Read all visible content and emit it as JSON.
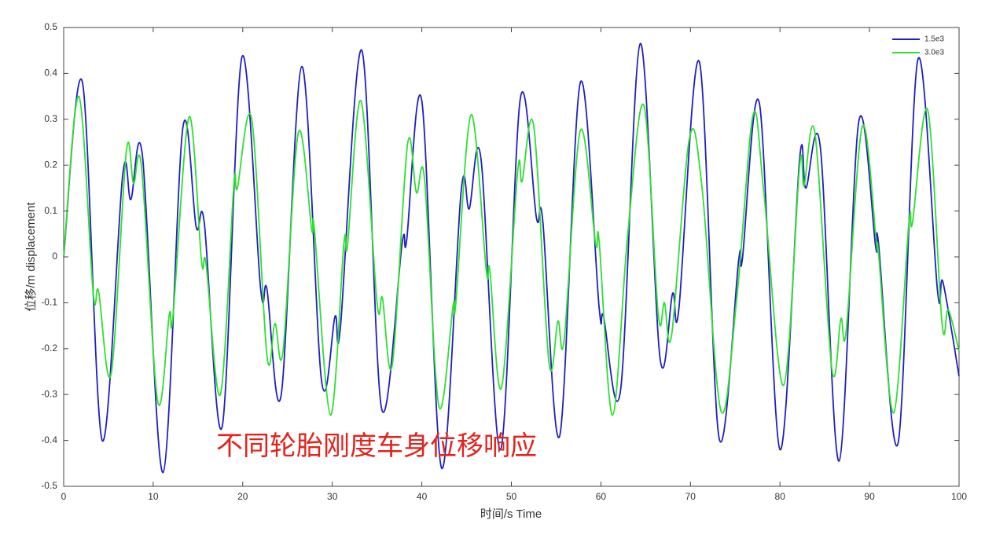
{
  "chart_data": {
    "type": "line",
    "x_label": "时间/s Time",
    "y_label": "位移/m displacement",
    "annotation": "不同轮胎刚度车身位移响应",
    "xlim": [
      0,
      100
    ],
    "xticks": [
      0,
      10,
      20,
      30,
      40,
      50,
      60,
      70,
      80,
      90,
      100
    ],
    "ylim": [
      -0.5,
      0.5
    ],
    "yticks": [
      -0.5,
      -0.4,
      -0.3,
      -0.2,
      -0.1,
      0,
      0.1,
      0.2,
      0.3,
      0.4,
      0.5
    ],
    "legend": "upper right",
    "series": [
      {
        "name": "1.5e3",
        "color": "#1f1fc4",
        "x": [
          0,
          2.1,
          4.3,
          6.6,
          7.5,
          8.8,
          11.1,
          13.3,
          14.8,
          15.7,
          17.7,
          19.9,
          22.0,
          22.7,
          24.3,
          26.6,
          28.8,
          30.3,
          30.9,
          33.3,
          35.5,
          37.8,
          38.3,
          40.0,
          42.2,
          44.4,
          45.3,
          46.6,
          48.8,
          51.0,
          52.8,
          53.5,
          55.4,
          57.7,
          59.8,
          60.3,
          62.2,
          64.4,
          66.6,
          68.0,
          68.7,
          71.0,
          73.2,
          75.4,
          75.8,
          77.7,
          80.0,
          82.2,
          82.9,
          84.5,
          86.6,
          88.8,
          90.7,
          91.0,
          93.2,
          95.4,
          97.6,
          98.2,
          100
        ],
        "values": [
          0,
          0.38,
          -0.4,
          0.18,
          0.125,
          0.22,
          -0.47,
          0.28,
          0.065,
          0.075,
          -0.37,
          0.435,
          -0.07,
          -0.07,
          -0.3,
          0.415,
          -0.27,
          -0.13,
          -0.155,
          0.45,
          -0.33,
          0.03,
          0.035,
          0.34,
          -0.46,
          0.145,
          0.105,
          0.215,
          -0.42,
          0.345,
          0.085,
          0.08,
          -0.39,
          0.38,
          -0.11,
          -0.13,
          -0.29,
          0.465,
          -0.22,
          -0.08,
          -0.115,
          0.425,
          -0.395,
          -0.005,
          -0.005,
          0.335,
          -0.42,
          0.215,
          0.15,
          0.24,
          -0.445,
          0.295,
          0.02,
          0.03,
          -0.405,
          0.43,
          -0.075,
          -0.055,
          -0.26
        ]
      },
      {
        "name": "3.0e3",
        "color": "#2ee02e",
        "x": [
          0,
          1.7,
          3.3,
          3.9,
          5.3,
          7.0,
          7.8,
          8.7,
          10.5,
          11.8,
          12.2,
          14.0,
          15.4,
          15.9,
          17.5,
          19.0,
          19.4,
          21.0,
          22.7,
          23.6,
          24.5,
          26.2,
          27.7,
          28.0,
          29.8,
          31.3,
          31.7,
          33.2,
          35.0,
          35.6,
          36.7,
          38.4,
          39.4,
          40.3,
          41.9,
          43.5,
          43.8,
          45.5,
          47.2,
          47.6,
          48.9,
          50.7,
          51.2,
          52.5,
          54.2,
          55.2,
          55.9,
          57.7,
          59.4,
          59.8,
          61.3,
          63.0,
          64.8,
          66.4,
          67.1,
          67.9,
          69.9,
          71.3,
          73.4,
          75.2,
          77.0,
          78.2,
          80.4,
          82.2,
          82.7,
          83.9,
          85.8,
          86.8,
          87.4,
          89.2,
          90.8,
          91.0,
          92.7,
          94.4,
          94.8,
          96.5,
          98.1,
          98.8,
          100
        ],
        "values": [
          0,
          0.35,
          -0.08,
          -0.075,
          -0.255,
          0.23,
          0.16,
          0.195,
          -0.315,
          -0.125,
          -0.13,
          0.305,
          -0.01,
          -0.015,
          -0.3,
          0.155,
          0.15,
          0.3,
          -0.215,
          -0.145,
          -0.205,
          0.27,
          0.06,
          0.06,
          -0.345,
          0.03,
          0.025,
          0.34,
          -0.1,
          -0.09,
          -0.235,
          0.245,
          0.14,
          0.17,
          -0.325,
          -0.105,
          -0.1,
          0.31,
          -0.03,
          -0.03,
          -0.285,
          0.185,
          0.165,
          0.285,
          -0.23,
          -0.14,
          -0.18,
          0.275,
          0.03,
          0.035,
          -0.345,
          0.05,
          0.33,
          -0.125,
          -0.1,
          -0.17,
          0.26,
          0.15,
          -0.335,
          -0.085,
          0.31,
          0.14,
          -0.28,
          0.2,
          0.155,
          0.27,
          -0.245,
          -0.135,
          -0.16,
          0.285,
          0.025,
          0.01,
          -0.34,
          0.075,
          0.075,
          0.32,
          -0.145,
          -0.115,
          -0.205
        ]
      }
    ]
  }
}
